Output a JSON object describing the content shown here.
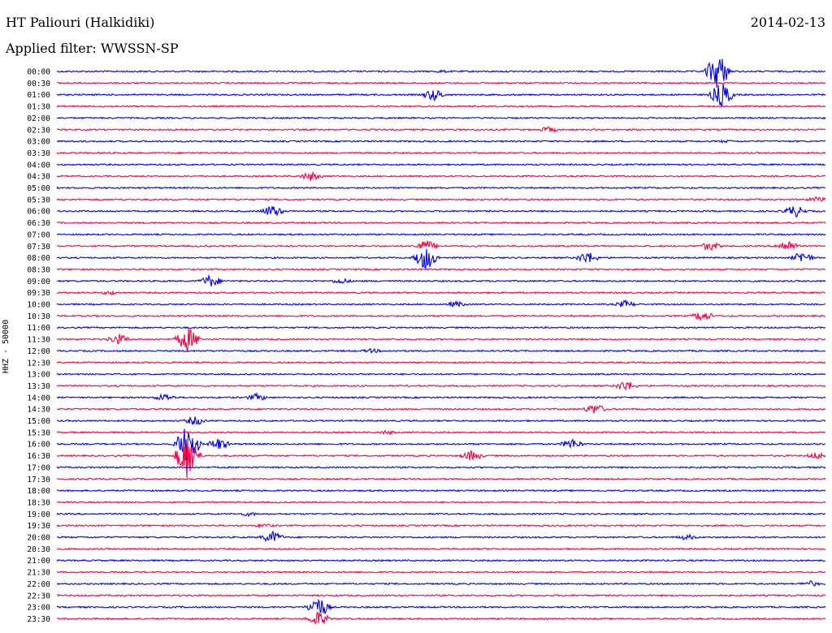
{
  "header": {
    "station": "HT Paliouri (Halkidiki)",
    "date": "2014-02-13",
    "filter": "Applied filter: WWSSN-SP"
  },
  "channel_label": "HHZ - 50000",
  "colors": {
    "even": "#0000ff",
    "odd": "#ff0040",
    "text": "#000000"
  },
  "chart_data": {
    "type": "line",
    "title": "HT Paliouri (Halkidiki)",
    "subtitle": "Applied filter: WWSSN-SP",
    "ylabel": "HHZ - 50000",
    "rows": [
      {
        "label": "00:00",
        "events": [
          {
            "x": 0.5,
            "amp": 2
          },
          {
            "x": 0.86,
            "amp": 24
          }
        ]
      },
      {
        "label": "00:30",
        "events": []
      },
      {
        "label": "01:00",
        "events": [
          {
            "x": 0.49,
            "amp": 8
          },
          {
            "x": 0.865,
            "amp": 16
          }
        ]
      },
      {
        "label": "01:30",
        "events": []
      },
      {
        "label": "02:00",
        "events": []
      },
      {
        "label": "02:30",
        "events": [
          {
            "x": 0.64,
            "amp": 4
          }
        ]
      },
      {
        "label": "03:00",
        "events": [
          {
            "x": 0.87,
            "amp": 2
          }
        ]
      },
      {
        "label": "03:30",
        "events": []
      },
      {
        "label": "04:00",
        "events": []
      },
      {
        "label": "04:30",
        "events": [
          {
            "x": 0.33,
            "amp": 6
          }
        ]
      },
      {
        "label": "05:00",
        "events": []
      },
      {
        "label": "05:30",
        "events": [
          {
            "x": 0.99,
            "amp": 4
          }
        ]
      },
      {
        "label": "06:00",
        "events": [
          {
            "x": 0.28,
            "amp": 8
          },
          {
            "x": 0.96,
            "amp": 8
          }
        ]
      },
      {
        "label": "06:30",
        "events": []
      },
      {
        "label": "07:00",
        "events": []
      },
      {
        "label": "07:30",
        "events": [
          {
            "x": 0.48,
            "amp": 8
          },
          {
            "x": 0.85,
            "amp": 6
          },
          {
            "x": 0.95,
            "amp": 8
          }
        ]
      },
      {
        "label": "08:00",
        "events": [
          {
            "x": 0.48,
            "amp": 16
          },
          {
            "x": 0.69,
            "amp": 8
          },
          {
            "x": 0.97,
            "amp": 8
          }
        ]
      },
      {
        "label": "08:30",
        "events": []
      },
      {
        "label": "09:00",
        "events": [
          {
            "x": 0.2,
            "amp": 8
          },
          {
            "x": 0.37,
            "amp": 4
          }
        ]
      },
      {
        "label": "09:30",
        "events": [
          {
            "x": 0.07,
            "amp": 3
          }
        ]
      },
      {
        "label": "10:00",
        "events": [
          {
            "x": 0.52,
            "amp": 4
          },
          {
            "x": 0.74,
            "amp": 5
          }
        ]
      },
      {
        "label": "10:30",
        "events": [
          {
            "x": 0.84,
            "amp": 7
          }
        ]
      },
      {
        "label": "11:00",
        "events": []
      },
      {
        "label": "11:30",
        "events": [
          {
            "x": 0.08,
            "amp": 7
          },
          {
            "x": 0.17,
            "amp": 16
          }
        ]
      },
      {
        "label": "12:00",
        "events": [
          {
            "x": 0.41,
            "amp": 3
          }
        ]
      },
      {
        "label": "12:30",
        "events": []
      },
      {
        "label": "13:00",
        "events": []
      },
      {
        "label": "13:30",
        "events": [
          {
            "x": 0.74,
            "amp": 7
          }
        ]
      },
      {
        "label": "14:00",
        "events": [
          {
            "x": 0.14,
            "amp": 5
          },
          {
            "x": 0.26,
            "amp": 5
          }
        ]
      },
      {
        "label": "14:30",
        "events": [
          {
            "x": 0.7,
            "amp": 7
          }
        ]
      },
      {
        "label": "15:00",
        "events": [
          {
            "x": 0.18,
            "amp": 6
          }
        ]
      },
      {
        "label": "15:30",
        "events": [
          {
            "x": 0.43,
            "amp": 3
          }
        ]
      },
      {
        "label": "16:00",
        "events": [
          {
            "x": 0.17,
            "amp": 26
          },
          {
            "x": 0.21,
            "amp": 8
          },
          {
            "x": 0.67,
            "amp": 7
          }
        ]
      },
      {
        "label": "16:30",
        "events": [
          {
            "x": 0.17,
            "amp": 30
          },
          {
            "x": 0.54,
            "amp": 7
          },
          {
            "x": 0.99,
            "amp": 5
          }
        ]
      },
      {
        "label": "17:00",
        "events": []
      },
      {
        "label": "17:30",
        "events": []
      },
      {
        "label": "18:00",
        "events": []
      },
      {
        "label": "18:30",
        "events": []
      },
      {
        "label": "19:00",
        "events": [
          {
            "x": 0.25,
            "amp": 3
          }
        ]
      },
      {
        "label": "19:30",
        "events": [
          {
            "x": 0.27,
            "amp": 3
          }
        ]
      },
      {
        "label": "20:00",
        "events": [
          {
            "x": 0.28,
            "amp": 8
          },
          {
            "x": 0.82,
            "amp": 4
          }
        ]
      },
      {
        "label": "20:30",
        "events": []
      },
      {
        "label": "21:00",
        "events": []
      },
      {
        "label": "21:30",
        "events": []
      },
      {
        "label": "22:00",
        "events": [
          {
            "x": 0.98,
            "amp": 4
          }
        ]
      },
      {
        "label": "22:30",
        "events": []
      },
      {
        "label": "23:00",
        "events": [
          {
            "x": 0.34,
            "amp": 14
          }
        ]
      },
      {
        "label": "23:30",
        "events": [
          {
            "x": 0.34,
            "amp": 10
          }
        ]
      }
    ]
  }
}
